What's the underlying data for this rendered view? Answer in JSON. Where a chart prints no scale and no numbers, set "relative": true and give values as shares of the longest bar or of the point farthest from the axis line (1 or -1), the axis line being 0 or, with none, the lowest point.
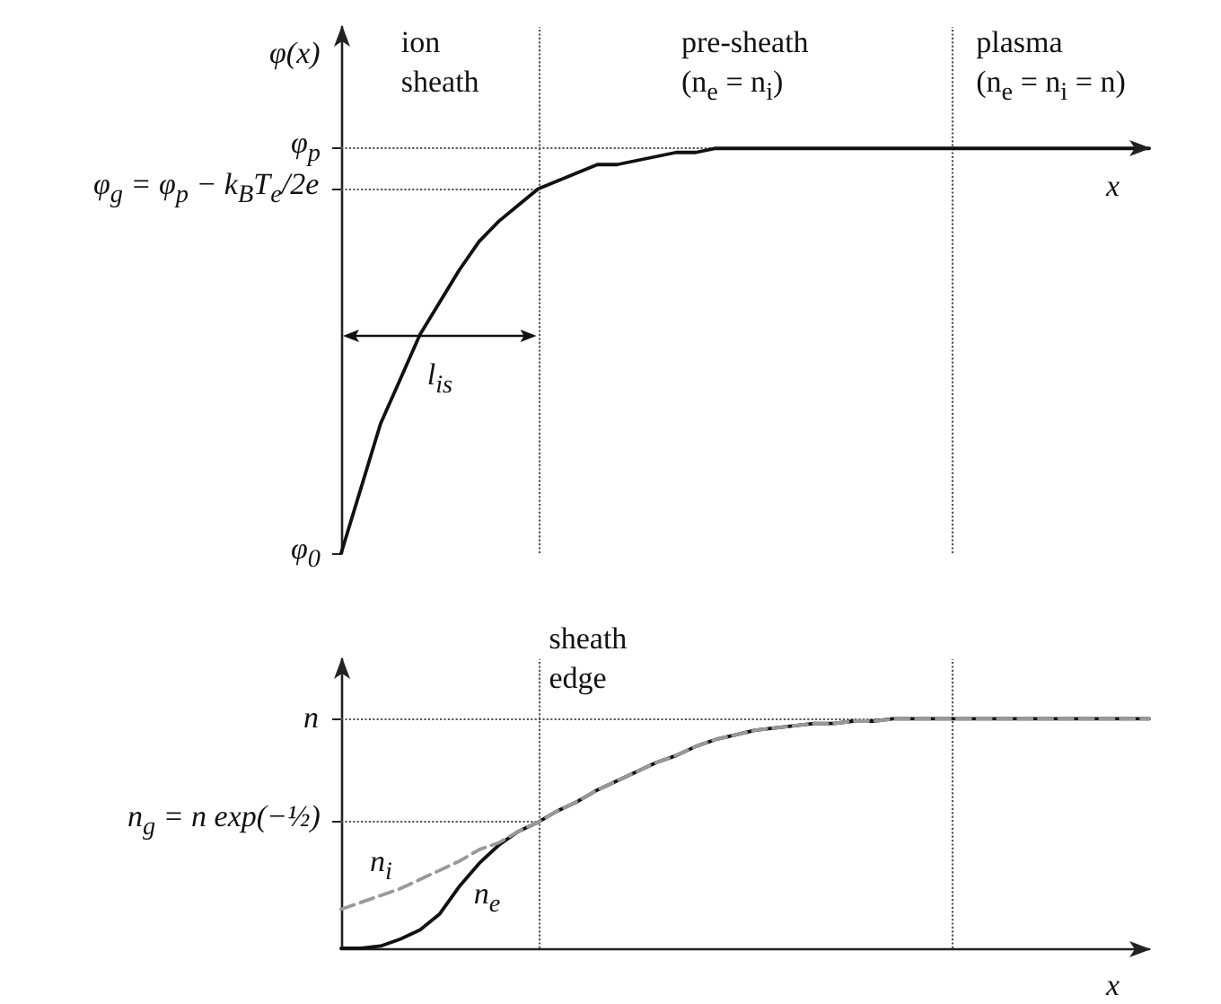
{
  "chart_data": [
    {
      "type": "line",
      "relative": true,
      "marker": "none",
      "ylabel": "φ(x)",
      "xlabel": "x",
      "categories": [
        null,
        null,
        null,
        null,
        null,
        null,
        null,
        null,
        null,
        null,
        null,
        null,
        null,
        null,
        null,
        null,
        null,
        null,
        null,
        null,
        null,
        null,
        null,
        null,
        null,
        null,
        null,
        null,
        null,
        null,
        null,
        null,
        null,
        null,
        null,
        null,
        null,
        null,
        null,
        null,
        null,
        null
      ],
      "series": [
        {
          "color": "#111111",
          "line_style": "solid",
          "values": [
            -1,
            -0.84,
            -0.68,
            -0.57,
            -0.46,
            -0.38,
            -0.3,
            -0.23,
            -0.18,
            -0.14,
            -0.1,
            -0.08,
            -0.06,
            -0.04,
            -0.04,
            -0.03,
            -0.02,
            -0.01,
            -0.01,
            0,
            0,
            0,
            0,
            0,
            0,
            0,
            0,
            0,
            0,
            0,
            0,
            0,
            0,
            0,
            0,
            0,
            0,
            0,
            0,
            0,
            0,
            0
          ]
        }
      ],
      "ref_lines": [
        {
          "axis": "y",
          "value": 0,
          "label": "φ$_{p}$"
        },
        {
          "axis": "y",
          "value": -0.1,
          "label": "φ$_{g}$ = φ$_{p}$ − k$_{B}$T$_{e}$/2e"
        },
        {
          "axis": "y",
          "value": -1,
          "label": "φ$_{0}$"
        }
      ],
      "annotations": [
        "ion\nsheath",
        "pre-sheath\n(n$_{e}$ = n$_{i}$)",
        "plasma\n(n$_{e}$ = n$_{i}$ = n)",
        "l$_{is}$"
      ]
    },
    {
      "type": "line",
      "relative": true,
      "marker": "none",
      "xlabel": "x",
      "categories": [
        null,
        null,
        null,
        null,
        null,
        null,
        null,
        null,
        null,
        null,
        null,
        null,
        null,
        null,
        null,
        null,
        null,
        null,
        null,
        null,
        null,
        null,
        null,
        null,
        null,
        null,
        null,
        null,
        null,
        null,
        null,
        null,
        null,
        null,
        null,
        null,
        null,
        null,
        null,
        null,
        null,
        null
      ],
      "series": [
        {
          "name": "n$_{e}$",
          "color": "#111111",
          "line_style": "solid",
          "values": [
            0,
            0,
            0.01,
            0.04,
            0.08,
            0.15,
            0.27,
            0.37,
            0.45,
            0.51,
            0.55,
            0.6,
            0.64,
            0.69,
            0.73,
            0.77,
            0.81,
            0.84,
            0.88,
            0.91,
            0.93,
            0.95,
            0.96,
            0.97,
            0.98,
            0.98,
            0.99,
            0.99,
            1,
            1,
            1,
            1,
            1,
            1,
            1,
            1,
            1,
            1,
            1,
            1,
            1,
            1
          ]
        },
        {
          "name": "n$_{i}$",
          "color": "#999999",
          "line_style": "dashed",
          "values": [
            0.17,
            0.2,
            0.23,
            0.26,
            0.3,
            0.34,
            0.38,
            0.43,
            0.46,
            0.51,
            0.55,
            0.6,
            0.64,
            0.69,
            0.73,
            0.77,
            0.81,
            0.84,
            0.88,
            0.91,
            0.93,
            0.95,
            0.96,
            0.97,
            0.98,
            0.98,
            0.99,
            0.99,
            1,
            1,
            1,
            1,
            1,
            1,
            1,
            1,
            1,
            1,
            1,
            1,
            1,
            1
          ]
        }
      ],
      "ref_lines": [
        {
          "axis": "y",
          "value": 1,
          "label": "n"
        },
        {
          "axis": "y",
          "value": 0.55,
          "label": "n$_{g}$ = n exp(−½)"
        }
      ],
      "annotations": [
        "sheath\nedge"
      ]
    }
  ]
}
